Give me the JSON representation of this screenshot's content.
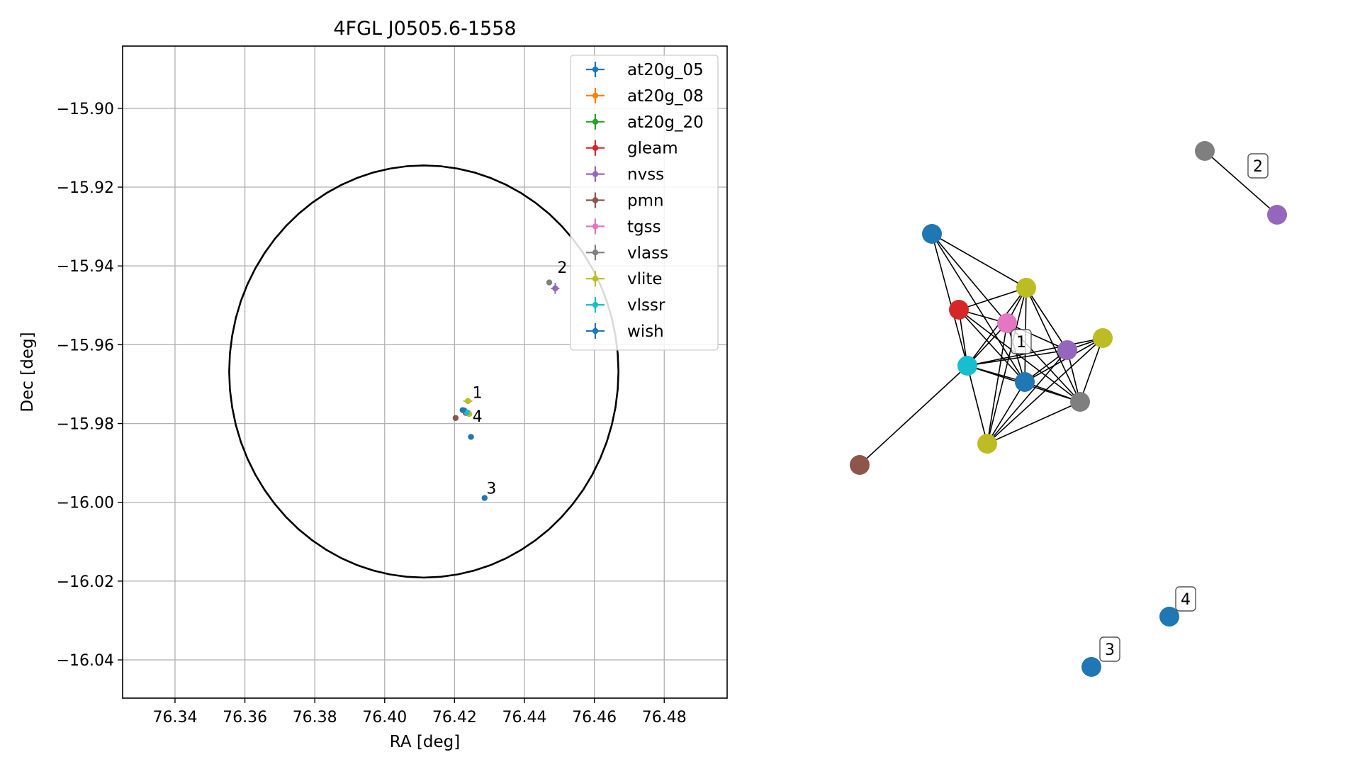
{
  "chart_data": [
    {
      "type": "scatter",
      "title": "4FGL J0505.6-1558",
      "xlabel": "RA [deg]",
      "ylabel": "Dec [deg]",
      "xlim": [
        76.325,
        76.498
      ],
      "ylim": [
        -16.0497,
        -15.8842
      ],
      "xticks": [
        76.34,
        76.36,
        76.38,
        76.4,
        76.42,
        76.44,
        76.46,
        76.48
      ],
      "xtick_labels": [
        "76.34",
        "76.36",
        "76.38",
        "76.40",
        "76.42",
        "76.44",
        "76.46",
        "76.48"
      ],
      "yticks": [
        -15.9,
        -15.92,
        -15.94,
        -15.96,
        -15.98,
        -16.0,
        -16.02,
        -16.04
      ],
      "ytick_labels": [
        "−15.90",
        "−15.92",
        "−15.94",
        "−15.96",
        "−15.98",
        "−16.00",
        "−16.02",
        "−16.04"
      ],
      "grid": true,
      "legend_position": "top-right",
      "ellipse": {
        "center": [
          76.4112,
          -15.9668
        ],
        "ra_semi_axis": 0.0557,
        "dec_semi_axis": 0.0523,
        "color": "#000000"
      },
      "series": [
        {
          "name": "at20g_05",
          "color": "#1f77b4",
          "points": [
            {
              "ra": 76.4228,
              "dec": -15.9767
            }
          ]
        },
        {
          "name": "at20g_08",
          "color": "#ff7f0e",
          "points": [
            {
              "ra": 76.4236,
              "dec": -15.9772
            }
          ]
        },
        {
          "name": "at20g_20",
          "color": "#2ca02c",
          "points": [
            {
              "ra": 76.4238,
              "dec": -15.9774
            }
          ]
        },
        {
          "name": "gleam",
          "color": "#d62728",
          "points": [
            {
              "ra": 76.4232,
              "dec": -15.9773,
              "ra_err": 0.0004,
              "dec_err": 0.0004
            }
          ]
        },
        {
          "name": "nvss",
          "color": "#9467bd",
          "points": [
            {
              "ra": 76.4488,
              "dec": -15.9457,
              "ra_err": 0.0012,
              "dec_err": 0.0014
            }
          ]
        },
        {
          "name": "pmn",
          "color": "#8c564b",
          "points": [
            {
              "ra": 76.4203,
              "dec": -15.9786
            }
          ]
        },
        {
          "name": "tgss",
          "color": "#e377c2",
          "points": [
            {
              "ra": 76.4238,
              "dec": -15.9772
            }
          ]
        },
        {
          "name": "vlass",
          "color": "#7f7f7f",
          "points": [
            {
              "ra": 76.4471,
              "dec": -15.9442
            },
            {
              "ra": 76.4241,
              "dec": -15.9775
            }
          ]
        },
        {
          "name": "vlite",
          "color": "#bcbd22",
          "points": [
            {
              "ra": 76.4238,
              "dec": -15.9743,
              "ra_err": 0.0013,
              "dec_err": 0.0007
            },
            {
              "ra": 76.4242,
              "dec": -15.9776,
              "ra_err": 0.0008,
              "dec_err": 0.0007
            }
          ]
        },
        {
          "name": "vlssr",
          "color": "#17becf",
          "points": [
            {
              "ra": 76.4235,
              "dec": -15.9772
            }
          ]
        },
        {
          "name": "wish",
          "color": "#1f77b4",
          "points": [
            {
              "ra": 76.4223,
              "dec": -15.9766
            },
            {
              "ra": 76.4247,
              "dec": -15.9834
            },
            {
              "ra": 76.4286,
              "dec": -15.9989
            }
          ]
        }
      ],
      "annotations": [
        {
          "text": "1",
          "ra": 76.4245,
          "dec": -15.9742
        },
        {
          "text": "2",
          "ra": 76.4488,
          "dec": -15.9425
        },
        {
          "text": "3",
          "ra": 76.4285,
          "dec": -15.9985
        },
        {
          "text": "4",
          "ra": 76.4245,
          "dec": -15.9803
        }
      ]
    },
    {
      "type": "network",
      "nodes": [
        {
          "id": "n_wish_a",
          "color": "#1f77b4"
        },
        {
          "id": "n_gleam",
          "color": "#d62728"
        },
        {
          "id": "n_tgss",
          "color": "#e377c2"
        },
        {
          "id": "n_vlite_a",
          "color": "#bcbd22"
        },
        {
          "id": "n_nvss",
          "color": "#9467bd"
        },
        {
          "id": "n_vlite_b",
          "color": "#bcbd22"
        },
        {
          "id": "n_vlssr",
          "color": "#17becf"
        },
        {
          "id": "n_at20g",
          "color": "#1f77b4"
        },
        {
          "id": "n_vlass",
          "color": "#7f7f7f"
        },
        {
          "id": "n_vlite_c",
          "color": "#bcbd22"
        },
        {
          "id": "n_pmn",
          "color": "#8c564b"
        },
        {
          "id": "n_vlass_2",
          "color": "#7f7f7f"
        },
        {
          "id": "n_nvss_2",
          "color": "#9467bd"
        },
        {
          "id": "n_wish_4",
          "color": "#1f77b4"
        },
        {
          "id": "n_wish_3",
          "color": "#1f77b4"
        }
      ],
      "edges": [
        [
          "n_wish_a",
          "n_tgss"
        ],
        [
          "n_wish_a",
          "n_vlite_a"
        ],
        [
          "n_wish_a",
          "n_vlssr"
        ],
        [
          "n_wish_a",
          "n_at20g"
        ],
        [
          "n_gleam",
          "n_vlite_a"
        ],
        [
          "n_gleam",
          "n_tgss"
        ],
        [
          "n_gleam",
          "n_vlssr"
        ],
        [
          "n_gleam",
          "n_at20g"
        ],
        [
          "n_gleam",
          "n_vlass"
        ],
        [
          "n_tgss",
          "n_vlite_a"
        ],
        [
          "n_tgss",
          "n_nvss"
        ],
        [
          "n_tgss",
          "n_vlssr"
        ],
        [
          "n_tgss",
          "n_at20g"
        ],
        [
          "n_tgss",
          "n_vlass"
        ],
        [
          "n_tgss",
          "n_vlite_c"
        ],
        [
          "n_vlite_a",
          "n_nvss"
        ],
        [
          "n_vlite_a",
          "n_vlssr"
        ],
        [
          "n_vlite_a",
          "n_at20g"
        ],
        [
          "n_vlite_a",
          "n_vlass"
        ],
        [
          "n_vlite_a",
          "n_vlite_c"
        ],
        [
          "n_nvss",
          "n_vlite_b"
        ],
        [
          "n_nvss",
          "n_vlssr"
        ],
        [
          "n_nvss",
          "n_at20g"
        ],
        [
          "n_nvss",
          "n_vlass"
        ],
        [
          "n_nvss",
          "n_vlite_c"
        ],
        [
          "n_vlite_b",
          "n_vlssr"
        ],
        [
          "n_vlite_b",
          "n_at20g"
        ],
        [
          "n_vlite_b",
          "n_vlass"
        ],
        [
          "n_vlite_b",
          "n_vlite_c"
        ],
        [
          "n_vlssr",
          "n_at20g"
        ],
        [
          "n_vlssr",
          "n_vlass"
        ],
        [
          "n_vlssr",
          "n_vlite_c"
        ],
        [
          "n_vlssr",
          "n_pmn"
        ],
        [
          "n_at20g",
          "n_vlass"
        ],
        [
          "n_at20g",
          "n_vlite_c"
        ],
        [
          "n_vlass",
          "n_vlite_c"
        ],
        [
          "n_vlass_2",
          "n_nvss_2"
        ]
      ],
      "labels": [
        {
          "text": "1"
        },
        {
          "text": "2"
        },
        {
          "text": "3"
        },
        {
          "text": "4"
        }
      ]
    }
  ]
}
